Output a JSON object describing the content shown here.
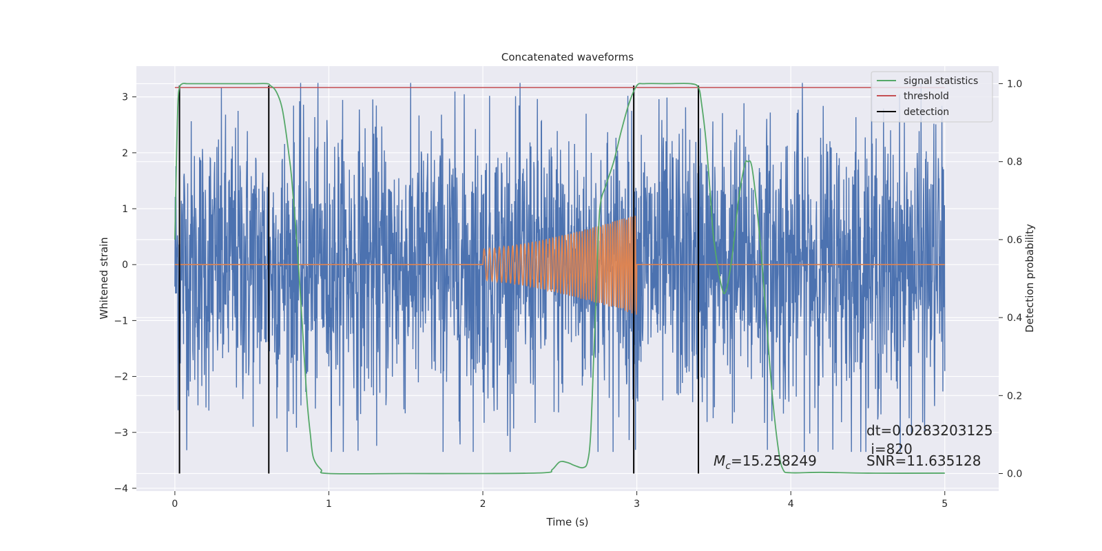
{
  "chart_data": {
    "type": "line",
    "title": "Concatenated waveforms",
    "xlabel": "Time (s)",
    "ylabel_left": "Whitened strain",
    "ylabel_right": "Detection probability",
    "xlim": [
      -0.25,
      5.35
    ],
    "ylim_left": [
      -4.05,
      3.55
    ],
    "ylim_right": [
      -0.045,
      1.045
    ],
    "xticks": [
      0,
      1,
      2,
      3,
      4,
      5
    ],
    "xtick_labels": [
      "0",
      "1",
      "2",
      "3",
      "4",
      "5"
    ],
    "yticks_left": [
      -4,
      -3,
      -2,
      -1,
      0,
      1,
      2,
      3
    ],
    "ytick_labels_left": [
      "−4",
      "−3",
      "−2",
      "−1",
      "0",
      "1",
      "2",
      "3"
    ],
    "yticks_right": [
      0.0,
      0.2,
      0.4,
      0.6,
      0.8,
      1.0
    ],
    "ytick_labels_right": [
      "0.0",
      "0.2",
      "0.4",
      "0.6",
      "0.8",
      "1.0"
    ],
    "grid": true,
    "legend_position": "top-right",
    "legend": [
      {
        "label": "signal statistics",
        "color": "#55a868"
      },
      {
        "label": "threshold",
        "color": "#c44e52"
      },
      {
        "label": "detection",
        "color": "#000000"
      }
    ],
    "series": [
      {
        "axis": "left",
        "color": "#4c72b0",
        "description": "whitened strain noise",
        "x_range": [
          0,
          5
        ],
        "typical_peak_abs": 2.3,
        "max": 3.25,
        "min": -3.35
      },
      {
        "axis": "left",
        "color": "#dd8452",
        "description": "injected chirp",
        "x_range": [
          0,
          5
        ],
        "chirp_start": 2.0,
        "chirp_end": 3.0,
        "amplitude_start": 0.28,
        "amplitude_end": 0.9
      },
      {
        "name": "signal statistics",
        "axis": "right",
        "color": "#55a868",
        "x": [
          0.0,
          0.01,
          0.02,
          0.03,
          0.05,
          0.08,
          0.15,
          0.3,
          0.5,
          0.6,
          0.62,
          0.65,
          0.68,
          0.7,
          0.72,
          0.74,
          0.76,
          0.8,
          0.84,
          0.86,
          0.88,
          0.9,
          0.95,
          1.0,
          1.5,
          2.0,
          2.4,
          2.45,
          2.5,
          2.55,
          2.6,
          2.65,
          2.68,
          2.7,
          2.72,
          2.74,
          2.76,
          2.8,
          2.85,
          2.9,
          2.95,
          3.0,
          3.05,
          3.2,
          3.35,
          3.4,
          3.42,
          3.45,
          3.48,
          3.5,
          3.55,
          3.58,
          3.62,
          3.66,
          3.7,
          3.72,
          3.75,
          3.8,
          3.84,
          3.88,
          3.92,
          3.95,
          4.0,
          4.2,
          4.5,
          5.0
        ],
        "y": [
          0.6,
          0.8,
          0.95,
          0.99,
          1.0,
          1.0,
          1.0,
          1.0,
          1.0,
          1.0,
          0.995,
          0.985,
          0.96,
          0.93,
          0.88,
          0.82,
          0.75,
          0.55,
          0.3,
          0.18,
          0.1,
          0.04,
          0.01,
          0.0,
          0.0,
          0.0,
          0.002,
          0.01,
          0.03,
          0.028,
          0.02,
          0.015,
          0.03,
          0.1,
          0.3,
          0.5,
          0.68,
          0.74,
          0.8,
          0.88,
          0.95,
          0.995,
          1.0,
          1.0,
          1.0,
          0.99,
          0.95,
          0.85,
          0.7,
          0.6,
          0.48,
          0.47,
          0.56,
          0.7,
          0.79,
          0.8,
          0.78,
          0.6,
          0.4,
          0.2,
          0.06,
          0.01,
          0.002,
          0.003,
          0.001,
          0.001
        ]
      },
      {
        "name": "threshold",
        "axis": "right",
        "color": "#c44e52",
        "x": [
          0,
          5
        ],
        "y": [
          0.99,
          0.99
        ]
      },
      {
        "name": "detection",
        "axis": "right",
        "color": "#000000",
        "type": "vlines",
        "x": [
          0.03,
          0.61,
          2.98,
          3.4
        ],
        "y_range": [
          0.0,
          0.995
        ]
      }
    ],
    "annotations": {
      "dt": "dt=0.0283203125",
      "i": " i=820",
      "mc_value": "=15.258249",
      "snr": "SNR=11.635128"
    }
  }
}
